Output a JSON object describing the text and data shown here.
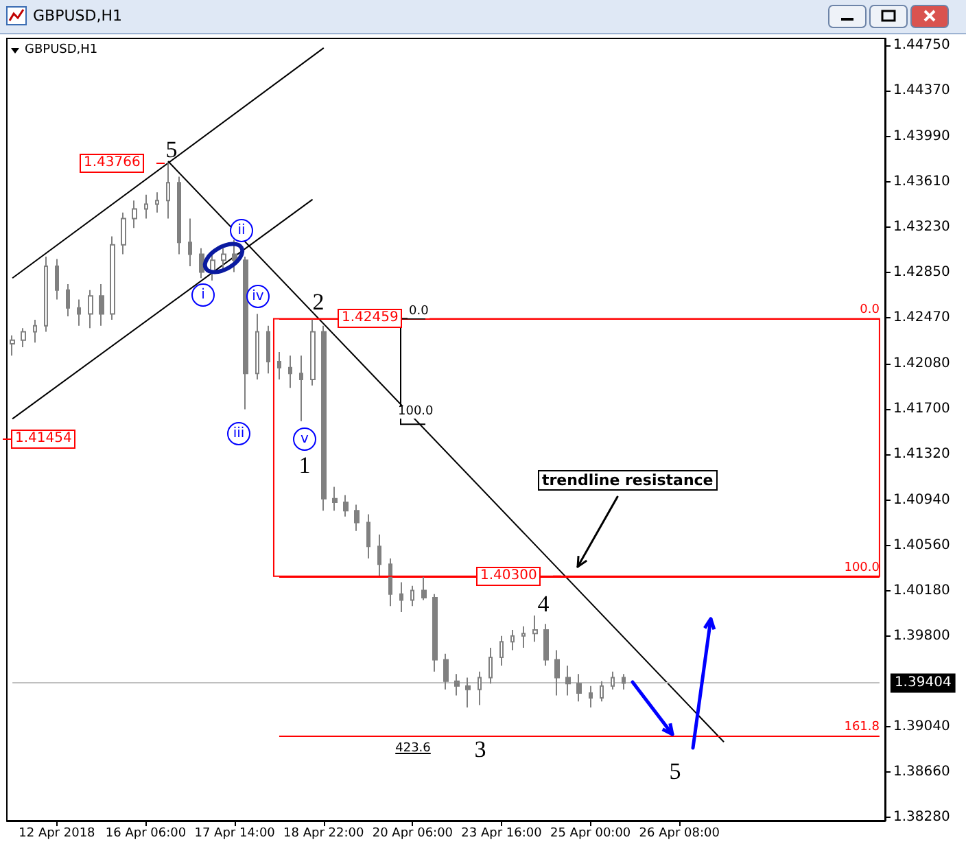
{
  "chart_data": {
    "type": "candlestick",
    "title": "GBPUSD,H1",
    "subtitle": "GBPUSD,H1",
    "color": "#808080",
    "categories": [
      null,
      null,
      null,
      null,
      "12 Apr 2018",
      null,
      null,
      null,
      null,
      null,
      null,
      null,
      "16 Apr 06:00",
      null,
      null,
      null,
      null,
      null,
      null,
      null,
      "17 Apr 14:00",
      null,
      null,
      null,
      null,
      null,
      null,
      null,
      "18 Apr 22:00",
      null,
      null,
      null,
      null,
      null,
      null,
      null,
      "20 Apr 06:00",
      null,
      null,
      null,
      null,
      null,
      null,
      null,
      "23 Apr 16:00",
      null,
      null,
      null,
      null,
      null,
      null,
      null,
      "25 Apr 00:00",
      null,
      null,
      null,
      null,
      null,
      null,
      null,
      "26 Apr 08:00",
      null,
      null,
      null,
      null,
      null,
      null,
      null,
      null,
      null,
      null,
      null,
      null,
      null,
      null,
      null,
      null,
      null,
      null
    ],
    "ohlc": [
      [
        1.4225,
        1.4232,
        1.4215,
        1.4228
      ],
      [
        1.4228,
        1.4238,
        1.4222,
        1.4235
      ],
      [
        1.4235,
        1.4245,
        1.4226,
        1.424
      ],
      [
        1.424,
        1.4298,
        1.4235,
        1.429
      ],
      [
        1.429,
        1.4296,
        1.4262,
        1.427
      ],
      [
        1.427,
        1.4275,
        1.4248,
        1.4255
      ],
      [
        1.4255,
        1.4262,
        1.424,
        1.425
      ],
      [
        1.425,
        1.427,
        1.4238,
        1.4265
      ],
      [
        1.4265,
        1.4275,
        1.424,
        1.425
      ],
      [
        1.425,
        1.4315,
        1.4245,
        1.4308
      ],
      [
        1.4308,
        1.4335,
        1.43,
        1.433
      ],
      [
        1.433,
        1.4345,
        1.4322,
        1.4338
      ],
      [
        1.4338,
        1.435,
        1.433,
        1.4342
      ],
      [
        1.4342,
        1.4352,
        1.4335,
        1.4345
      ],
      [
        1.4345,
        1.43766,
        1.433,
        1.436
      ],
      [
        1.436,
        1.4365,
        1.43,
        1.431
      ],
      [
        1.431,
        1.433,
        1.429,
        1.43
      ],
      [
        1.43,
        1.4305,
        1.428,
        1.4285
      ],
      [
        1.4285,
        1.43,
        1.4278,
        1.4295
      ],
      [
        1.4295,
        1.4305,
        1.4288,
        1.43
      ],
      [
        1.43,
        1.4312,
        1.4285,
        1.4295
      ],
      [
        1.4295,
        1.4298,
        1.417,
        1.42
      ],
      [
        1.42,
        1.425,
        1.4195,
        1.4235
      ],
      [
        1.4235,
        1.424,
        1.42,
        1.421
      ],
      [
        1.421,
        1.4218,
        1.4195,
        1.4205
      ],
      [
        1.4205,
        1.4215,
        1.4188,
        1.42
      ],
      [
        1.42,
        1.4215,
        1.416,
        1.4195
      ],
      [
        1.4195,
        1.42459,
        1.419,
        1.4235
      ],
      [
        1.4235,
        1.424,
        1.4085,
        1.4095
      ],
      [
        1.4095,
        1.4105,
        1.4085,
        1.4092
      ],
      [
        1.4092,
        1.4098,
        1.408,
        1.4085
      ],
      [
        1.4085,
        1.409,
        1.4068,
        1.4075
      ],
      [
        1.4075,
        1.4082,
        1.4045,
        1.4055
      ],
      [
        1.4055,
        1.4065,
        1.403,
        1.404
      ],
      [
        1.404,
        1.4045,
        1.4005,
        1.4015
      ],
      [
        1.4015,
        1.4025,
        1.4,
        1.401
      ],
      [
        1.401,
        1.4022,
        1.4005,
        1.4018
      ],
      [
        1.4018,
        1.403,
        1.401,
        1.4012
      ],
      [
        1.4012,
        1.4015,
        1.395,
        1.396
      ],
      [
        1.396,
        1.3965,
        1.3935,
        1.3942
      ],
      [
        1.3942,
        1.3948,
        1.393,
        1.3938
      ],
      [
        1.3938,
        1.3945,
        1.392,
        1.3935
      ],
      [
        1.3935,
        1.395,
        1.3922,
        1.3945
      ],
      [
        1.3945,
        1.397,
        1.394,
        1.3962
      ],
      [
        1.3962,
        1.398,
        1.3955,
        1.3975
      ],
      [
        1.3975,
        1.3985,
        1.3968,
        1.398
      ],
      [
        1.398,
        1.3988,
        1.397,
        1.3982
      ],
      [
        1.3982,
        1.3997,
        1.3975,
        1.3985
      ],
      [
        1.3985,
        1.399,
        1.3955,
        1.396
      ],
      [
        1.396,
        1.3968,
        1.393,
        1.3945
      ],
      [
        1.3945,
        1.3955,
        1.393,
        1.394
      ],
      [
        1.394,
        1.3948,
        1.3925,
        1.3932
      ],
      [
        1.3932,
        1.3938,
        1.392,
        1.3928
      ],
      [
        1.3928,
        1.3942,
        1.3925,
        1.3938
      ],
      [
        1.3938,
        1.395,
        1.3935,
        1.3945
      ],
      [
        1.3945,
        1.3948,
        1.3935,
        1.39404
      ],
      null,
      null,
      null,
      null,
      null,
      null,
      null,
      null,
      null,
      null,
      null,
      null,
      null,
      null,
      null,
      null,
      null,
      null,
      null,
      null,
      null,
      null,
      null
    ],
    "series": [
      {
        "type": "line",
        "color": "#000000",
        "values": [
          1.428,
          null,
          null,
          null,
          null,
          null,
          null,
          null,
          null,
          null,
          null,
          null,
          null,
          null,
          null,
          null,
          null,
          null,
          null,
          null,
          null,
          null,
          null,
          null,
          null,
          null,
          null,
          null,
          1.4473,
          null,
          null,
          null,
          null,
          null,
          null,
          null,
          null,
          null,
          null,
          null,
          null,
          null,
          null,
          null,
          null,
          null,
          null,
          null,
          null,
          null,
          null,
          null,
          null,
          null,
          null,
          null,
          null,
          null,
          null,
          null,
          null,
          null,
          null,
          null,
          null,
          null,
          null,
          null,
          null,
          null,
          null,
          null,
          null,
          null,
          null,
          null,
          null,
          null,
          null
        ]
      },
      {
        "type": "line",
        "color": "#000000",
        "values": [
          1.4162,
          null,
          null,
          null,
          null,
          null,
          null,
          null,
          null,
          null,
          null,
          null,
          null,
          null,
          null,
          null,
          null,
          null,
          null,
          null,
          null,
          null,
          null,
          null,
          null,
          null,
          null,
          1.4346,
          null,
          null,
          null,
          null,
          null,
          null,
          null,
          null,
          null,
          null,
          null,
          null,
          null,
          null,
          null,
          null,
          null,
          null,
          null,
          null,
          null,
          null,
          null,
          null,
          null,
          null,
          null,
          null,
          null,
          null,
          null,
          null,
          null,
          null,
          null,
          null,
          null,
          null,
          null,
          null,
          null,
          null,
          null,
          null,
          null,
          null,
          null,
          null,
          null,
          null,
          null
        ]
      },
      {
        "type": "line",
        "color": "#000000",
        "values": [
          null,
          null,
          null,
          null,
          null,
          null,
          null,
          null,
          null,
          null,
          null,
          null,
          null,
          null,
          1.4378,
          null,
          null,
          null,
          null,
          null,
          null,
          null,
          null,
          null,
          null,
          null,
          null,
          null,
          null,
          null,
          null,
          null,
          null,
          null,
          null,
          null,
          null,
          null,
          null,
          null,
          null,
          null,
          null,
          null,
          null,
          null,
          null,
          null,
          null,
          null,
          null,
          null,
          null,
          null,
          null,
          null,
          null,
          null,
          null,
          null,
          null,
          null,
          null,
          null,
          1.3891,
          null,
          null,
          null,
          null,
          null,
          null,
          null,
          null,
          null,
          null,
          null,
          null,
          null,
          null
        ]
      }
    ],
    "ylim": [
      1.3825,
      1.4481
    ],
    "yticks": [
      {
        "value": 1.3828,
        "label": "1.38280"
      },
      {
        "value": 1.3866,
        "label": "1.38660"
      },
      {
        "value": 1.3904,
        "label": "1.39040"
      },
      {
        "value": 1.398,
        "label": "1.39800"
      },
      {
        "value": 1.4018,
        "label": "1.40180"
      },
      {
        "value": 1.4056,
        "label": "1.40560"
      },
      {
        "value": 1.4094,
        "label": "1.40940"
      },
      {
        "value": 1.4132,
        "label": "1.41320"
      },
      {
        "value": 1.417,
        "label": "1.41700"
      },
      {
        "value": 1.4208,
        "label": "1.42080"
      },
      {
        "value": 1.4247,
        "label": "1.42470"
      },
      {
        "value": 1.4285,
        "label": "1.42850"
      },
      {
        "value": 1.4323,
        "label": "1.43230"
      },
      {
        "value": 1.4361,
        "label": "1.43610"
      },
      {
        "value": 1.4399,
        "label": "1.43990"
      },
      {
        "value": 1.4437,
        "label": "1.44370"
      },
      {
        "value": 1.4475,
        "label": "1.44750"
      }
    ],
    "ref_lines": [
      {
        "axis": "y",
        "value": 1.42459,
        "color": "#ff0000"
      },
      {
        "axis": "y",
        "value": 1.403,
        "color": "#ff0000"
      },
      {
        "axis": "y",
        "value": 1.38966,
        "color": "#ff0000"
      },
      {
        "axis": "y",
        "value": 1.39404,
        "label": "1.39404",
        "color": "#c0c0c0"
      }
    ],
    "annotations": [
      "5",
      "ii",
      "i",
      "iv",
      "2",
      "iii",
      "v",
      "1",
      "4",
      "3",
      "5",
      "1.43766",
      {
        "text": "1.42459",
        "y": 1.42459
      },
      "1.41454",
      {
        "text": "1.40300",
        "y": 1.403
      },
      {
        "text": "0.0",
        "y": 1.42459
      },
      {
        "text": "100.0",
        "y": 1.4162
      },
      "423.6",
      "trendline resistance",
      {
        "text": "0.0",
        "y": 1.42459
      },
      {
        "text": "100.0",
        "y": 1.403
      },
      {
        "text": "161.8",
        "y": 1.38966
      }
    ],
    "grid": false
  }
}
